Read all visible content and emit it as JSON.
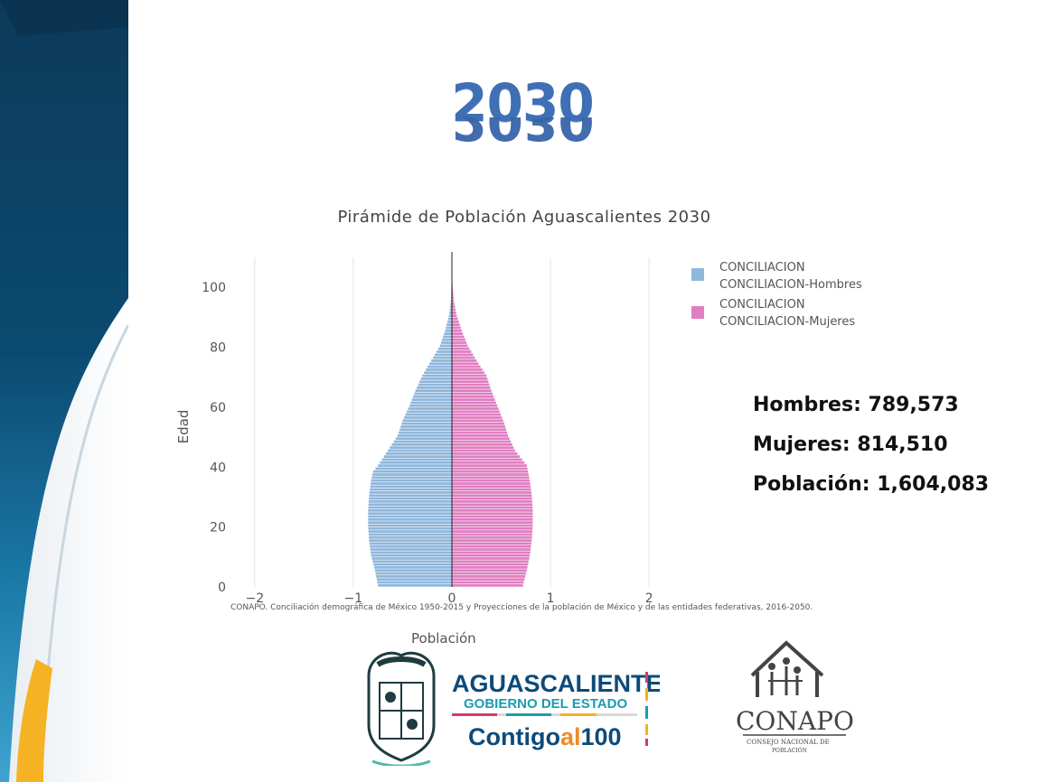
{
  "header": {
    "year": "2030"
  },
  "chart_data": {
    "type": "bar",
    "orientation": "horizontal-pyramid",
    "title": "Pirámide de Población Aguascalientes 2030",
    "xlabel": "Población",
    "ylabel": "Edad",
    "xlim": [
      -2.2,
      2.2
    ],
    "ylim": [
      0,
      110
    ],
    "x_ticks": [
      "−2",
      "−1",
      "0",
      "1",
      "2"
    ],
    "x_tick_values": [
      -2,
      -1,
      0,
      1,
      2
    ],
    "y_ticks": [
      "0",
      "20",
      "40",
      "60",
      "80",
      "100"
    ],
    "y_tick_values": [
      0,
      20,
      40,
      60,
      80,
      100
    ],
    "grid": "vertical",
    "legend_position": "top-right",
    "series": [
      {
        "name": "CONCILIACION CONCILIACION-Hombres",
        "legend_line1": "CONCILIACION",
        "legend_line2": "CONCILIACION-Hombres",
        "color": "#8fb6dc",
        "anchors": [
          [
            0,
            0.75
          ],
          [
            5,
            0.78
          ],
          [
            10,
            0.82
          ],
          [
            15,
            0.84
          ],
          [
            20,
            0.85
          ],
          [
            25,
            0.85
          ],
          [
            30,
            0.84
          ],
          [
            35,
            0.82
          ],
          [
            38,
            0.8
          ],
          [
            40,
            0.75
          ],
          [
            45,
            0.65
          ],
          [
            50,
            0.55
          ],
          [
            55,
            0.5
          ],
          [
            60,
            0.43
          ],
          [
            65,
            0.37
          ],
          [
            70,
            0.3
          ],
          [
            75,
            0.21
          ],
          [
            80,
            0.12
          ],
          [
            85,
            0.07
          ],
          [
            90,
            0.03
          ],
          [
            95,
            0.01
          ],
          [
            100,
            0.005
          ]
        ]
      },
      {
        "name": "CONCILIACION CONCILIACION-Mujeres",
        "legend_line1": "CONCILIACION",
        "legend_line2": "CONCILIACION-Mujeres",
        "color": "#e07ec1",
        "anchors": [
          [
            0,
            0.72
          ],
          [
            5,
            0.76
          ],
          [
            10,
            0.79
          ],
          [
            15,
            0.81
          ],
          [
            20,
            0.82
          ],
          [
            25,
            0.82
          ],
          [
            30,
            0.81
          ],
          [
            35,
            0.79
          ],
          [
            40,
            0.76
          ],
          [
            45,
            0.64
          ],
          [
            50,
            0.57
          ],
          [
            55,
            0.52
          ],
          [
            60,
            0.46
          ],
          [
            65,
            0.4
          ],
          [
            70,
            0.35
          ],
          [
            75,
            0.25
          ],
          [
            80,
            0.16
          ],
          [
            85,
            0.1
          ],
          [
            90,
            0.05
          ],
          [
            95,
            0.02
          ],
          [
            100,
            0.008
          ]
        ]
      }
    ]
  },
  "stats": {
    "hombres": "Hombres: 789,573",
    "mujeres": "Mujeres: 814,510",
    "poblacion": "Población: 1,604,083"
  },
  "source": "CONAPO. Conciliación demográfica de México 1950-2015 y Proyecciones de la población de México y de las entidades federativas, 2016-2050.",
  "logos": {
    "ags_line1": "AGUASCALIENTES",
    "ags_line2": "GOBIERNO DEL ESTADO",
    "ags_line3_a": "Contigo",
    "ags_line3_b": "al",
    "ags_line3_c": "100",
    "conapo": "CONAPO",
    "conapo_sub1": "CONSEJO NACIONAL DE",
    "conapo_sub2": "POBLACIÓN",
    "colors": {
      "ags_blue": "#0d4a7a",
      "ags_teal": "#1a9cb0",
      "ags_orange": "#f08a24"
    }
  }
}
